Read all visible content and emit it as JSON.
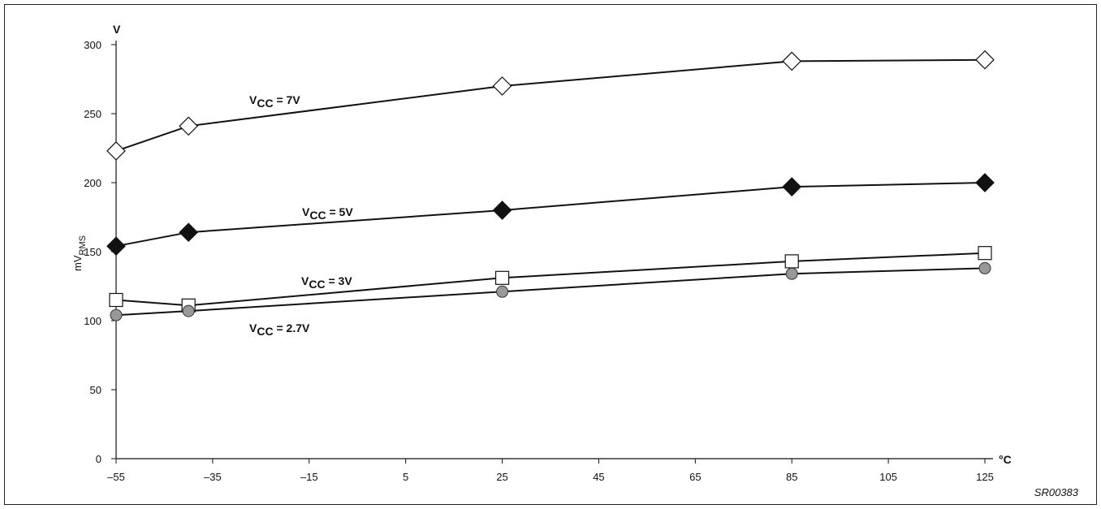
{
  "chart_data": {
    "type": "line",
    "title": "",
    "ylabel": "mV",
    "ylabel_sub": "RMS",
    "y_unit": "V",
    "x_unit": "°C",
    "x_ticks": [
      "–55",
      "–35",
      "–15",
      "5",
      "25",
      "45",
      "65",
      "85",
      "105",
      "125"
    ],
    "y_ticks": [
      "0",
      "50",
      "100",
      "150",
      "200",
      "250",
      "300"
    ],
    "xlim": [
      -55,
      125
    ],
    "ylim": [
      0,
      300
    ],
    "grid": false,
    "series": [
      {
        "name": "VCC = 7V",
        "name_main": "V",
        "name_sub": "CC",
        "name_rest": " = 7V",
        "marker": "diamond-open",
        "x": [
          -55,
          -40,
          25,
          85,
          125
        ],
        "values": [
          223,
          241,
          270,
          288,
          289
        ]
      },
      {
        "name": "VCC = 5V",
        "name_main": "V",
        "name_sub": "CC",
        "name_rest": " = 5V",
        "marker": "diamond-filled",
        "x": [
          -55,
          -40,
          25,
          85,
          125
        ],
        "values": [
          154,
          164,
          180,
          197,
          200
        ]
      },
      {
        "name": "VCC = 3V",
        "name_main": "V",
        "name_sub": "CC",
        "name_rest": " = 3V",
        "marker": "square-open",
        "x": [
          -55,
          -40,
          25,
          85,
          125
        ],
        "values": [
          115,
          111,
          131,
          143,
          149
        ]
      },
      {
        "name": "VCC = 2.7V",
        "name_main": "V",
        "name_sub": "CC",
        "name_rest": " = 2.7V",
        "marker": "circle-gray",
        "x": [
          -55,
          -40,
          25,
          85,
          125
        ],
        "values": [
          104,
          107,
          121,
          134,
          138
        ]
      }
    ]
  },
  "figure_code": "SR00383",
  "colors": {
    "line": "#111111",
    "marker_fill_dark": "#111111",
    "marker_fill_gray": "#999999",
    "marker_fill_open": "#ffffff"
  }
}
